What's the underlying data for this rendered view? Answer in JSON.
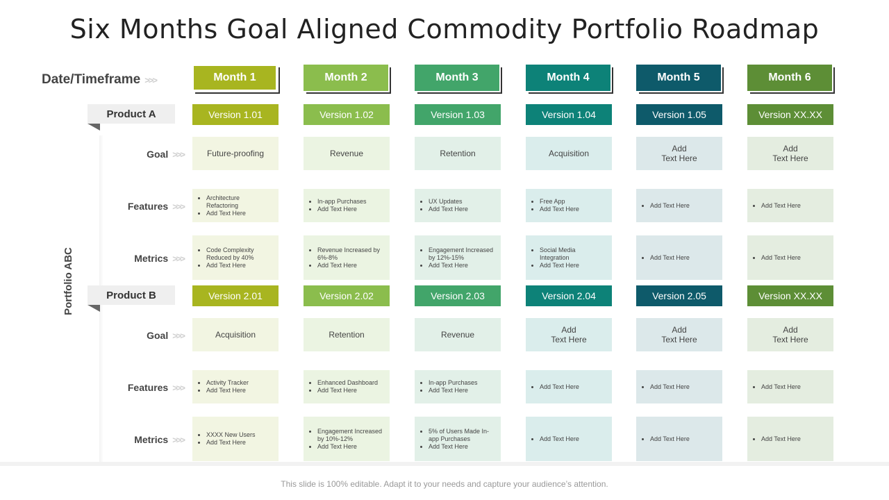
{
  "title": "Six Months Goal Aligned Commodity Portfolio Roadmap",
  "date_label": "Date/Timeframe",
  "portfolio_label": "Portfolio ABC",
  "chevron": ">>>",
  "months": [
    {
      "label": "Month 1",
      "color": "#a8b520"
    },
    {
      "label": "Month 2",
      "color": "#8bbd4d"
    },
    {
      "label": "Month 3",
      "color": "#42a56a"
    },
    {
      "label": "Month 4",
      "color": "#0d8278"
    },
    {
      "label": "Month 5",
      "color": "#0e5a6a"
    },
    {
      "label": "Month 6",
      "color": "#5d8e36"
    }
  ],
  "cell_colors": [
    "#f2f5e2",
    "#ebf4e2",
    "#e2f0e8",
    "#daedec",
    "#dce8ea",
    "#e4ede0"
  ],
  "row_labels": {
    "goal": "Goal",
    "features": "Features",
    "metrics": "Metrics"
  },
  "products": [
    {
      "name": "Product A",
      "versions": [
        "Version 1.01",
        "Version 1.02",
        "Version 1.03",
        "Version 1.04",
        "Version 1.05",
        "Version XX.XX"
      ],
      "goals": [
        [
          "Future-proofing"
        ],
        [
          "Revenue"
        ],
        [
          "Retention"
        ],
        [
          "Acquisition"
        ],
        [
          "Add",
          "Text Here"
        ],
        [
          "Add",
          "Text Here"
        ]
      ],
      "features": [
        [
          "Architecture Refactoring",
          "Add Text Here"
        ],
        [
          "In-app Purchases",
          "Add Text Here"
        ],
        [
          "UX Updates",
          "Add Text Here"
        ],
        [
          "Free App",
          "Add Text Here"
        ],
        [
          "Add Text Here"
        ],
        [
          "Add Text Here"
        ]
      ],
      "metrics": [
        [
          "Code Complexity Reduced by 40%",
          "Add Text Here"
        ],
        [
          "Revenue Increased by 6%-8%",
          "Add Text Here"
        ],
        [
          "Engagement Increased by 12%-15%",
          "Add Text Here"
        ],
        [
          "Social Media Integration",
          "Add Text Here"
        ],
        [
          "Add Text Here"
        ],
        [
          "Add Text Here"
        ]
      ]
    },
    {
      "name": "Product B",
      "versions": [
        "Version 2.01",
        "Version 2.02",
        "Version 2.03",
        "Version 2.04",
        "Version 2.05",
        "Version XX.XX"
      ],
      "goals": [
        [
          "Acquisition"
        ],
        [
          "Retention"
        ],
        [
          "Revenue"
        ],
        [
          "Add",
          "Text Here"
        ],
        [
          "Add",
          "Text Here"
        ],
        [
          "Add",
          "Text Here"
        ]
      ],
      "features": [
        [
          "Activity Tracker",
          "Add Text Here"
        ],
        [
          "Enhanced Dashboard",
          "Add Text Here"
        ],
        [
          "In-app Purchases",
          "Add Text Here"
        ],
        [
          "Add Text Here"
        ],
        [
          "Add Text Here"
        ],
        [
          "Add Text Here"
        ]
      ],
      "metrics": [
        [
          "XXXX  New Users",
          "Add Text Here"
        ],
        [
          "Engagement Increased by 10%-12%",
          "Add Text Here"
        ],
        [
          "5% of Users Made In-app Purchases",
          "Add Text Here"
        ],
        [
          "Add Text Here"
        ],
        [
          "Add Text Here"
        ],
        [
          "Add Text Here"
        ]
      ]
    }
  ],
  "footer": "This slide is 100% editable. Adapt it to your needs and capture your audience’s attention."
}
